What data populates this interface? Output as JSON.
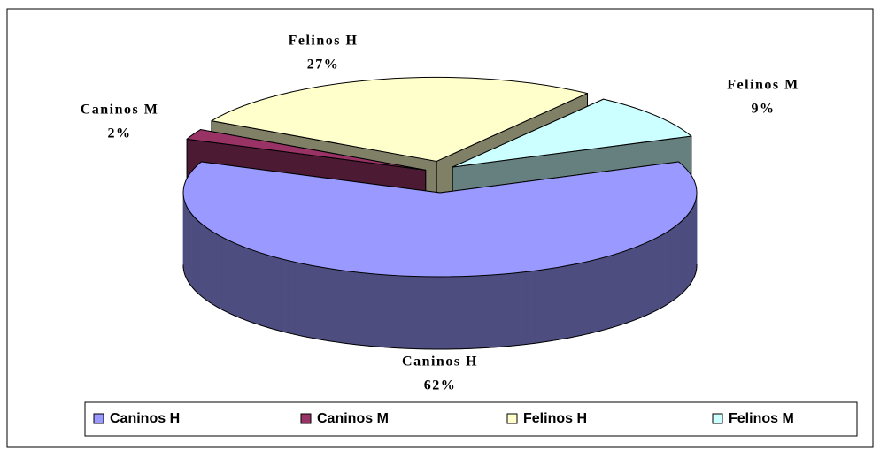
{
  "chart_data": {
    "type": "pie3d",
    "categories": [
      "Caninos H",
      "Caninos M",
      "Felinos H",
      "Felinos M"
    ],
    "values": [
      62,
      2,
      27,
      9
    ],
    "value_labels": [
      "62%",
      "2%",
      "27%",
      "9%"
    ],
    "colors": [
      "#9999ff",
      "#993366",
      "#ffffcc",
      "#ccffff"
    ],
    "legend": "bottom"
  }
}
